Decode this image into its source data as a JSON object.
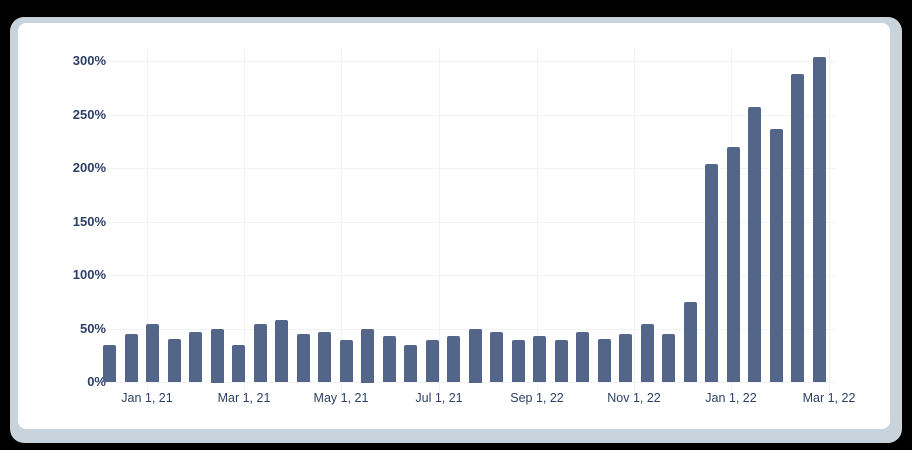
{
  "chart_data": {
    "type": "bar",
    "title": "",
    "xlabel": "",
    "ylabel": "",
    "ylim": [
      0,
      300
    ],
    "y_ticks": [
      "0%",
      "50%",
      "100%",
      "150%",
      "200%",
      "250%",
      "300%"
    ],
    "x_tick_labels": [
      "Jan 1, 21",
      "Mar 1, 21",
      "May 1, 21",
      "Jul 1, 21",
      "Sep 1, 22",
      "Nov 1, 22",
      "Jan 1, 22",
      "Mar 1, 22"
    ],
    "grid": true,
    "legend": "none",
    "bar_color": "#53668a",
    "series": [
      {
        "name": "value",
        "values": [
          35,
          45,
          54,
          40,
          47,
          50,
          35,
          54,
          58,
          45,
          47,
          39,
          50,
          43,
          35,
          39,
          43,
          50,
          47,
          39,
          43,
          39,
          47,
          40,
          45,
          54,
          45,
          75,
          204,
          220,
          257,
          236,
          288,
          304
        ]
      }
    ]
  },
  "colors": {
    "bar": "#53668a",
    "axis_text": "#2d3f66",
    "grid": "#f1f2f5",
    "card": "#ffffff",
    "frame": "#c9d3db",
    "background": "#000000"
  }
}
